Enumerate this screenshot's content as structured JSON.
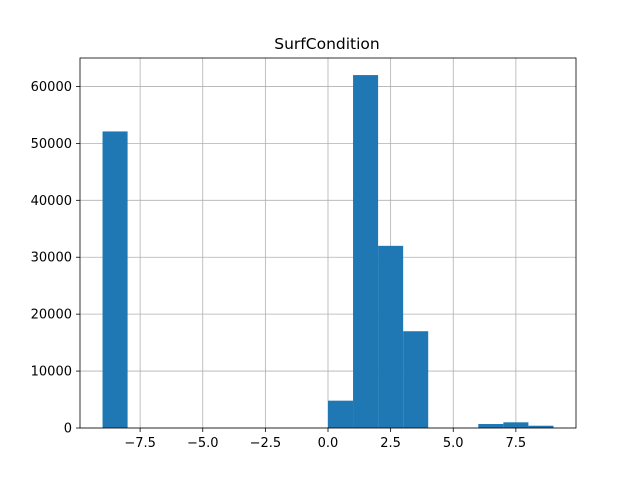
{
  "chart_data": {
    "type": "bar",
    "title": "SurfCondition",
    "xlabel": "",
    "ylabel": "",
    "xlim": [
      -9.9,
      9.9
    ],
    "ylim": [
      0,
      65000
    ],
    "x_ticks": [
      -7.5,
      -5.0,
      -2.5,
      0.0,
      2.5,
      5.0,
      7.5
    ],
    "x_tick_labels": [
      "−7.5",
      "−5.0",
      "−2.5",
      "0.0",
      "2.5",
      "5.0",
      "7.5"
    ],
    "y_ticks": [
      0,
      10000,
      20000,
      30000,
      40000,
      50000,
      60000
    ],
    "y_tick_labels": [
      "0",
      "10000",
      "20000",
      "30000",
      "40000",
      "50000",
      "60000"
    ],
    "grid": true,
    "bar_color": "#1f77b4",
    "bins": [
      {
        "x0": -9.0,
        "x1": -8.0,
        "value": 52100
      },
      {
        "x0": -8.0,
        "x1": -7.0,
        "value": 0
      },
      {
        "x0": -7.0,
        "x1": -6.0,
        "value": 0
      },
      {
        "x0": -6.0,
        "x1": -5.0,
        "value": 0
      },
      {
        "x0": -5.0,
        "x1": -4.0,
        "value": 0
      },
      {
        "x0": -4.0,
        "x1": -3.0,
        "value": 0
      },
      {
        "x0": -3.0,
        "x1": -2.0,
        "value": 0
      },
      {
        "x0": -2.0,
        "x1": -1.0,
        "value": 0
      },
      {
        "x0": -1.0,
        "x1": 0.0,
        "value": 0
      },
      {
        "x0": 0.0,
        "x1": 1.0,
        "value": 4800
      },
      {
        "x0": 1.0,
        "x1": 2.0,
        "value": 62000
      },
      {
        "x0": 2.0,
        "x1": 3.0,
        "value": 32000
      },
      {
        "x0": 3.0,
        "x1": 4.0,
        "value": 17000
      },
      {
        "x0": 4.0,
        "x1": 5.0,
        "value": 0
      },
      {
        "x0": 5.0,
        "x1": 6.0,
        "value": 0
      },
      {
        "x0": 6.0,
        "x1": 7.0,
        "value": 700
      },
      {
        "x0": 7.0,
        "x1": 8.0,
        "value": 1000
      },
      {
        "x0": 8.0,
        "x1": 9.0,
        "value": 400
      }
    ]
  }
}
